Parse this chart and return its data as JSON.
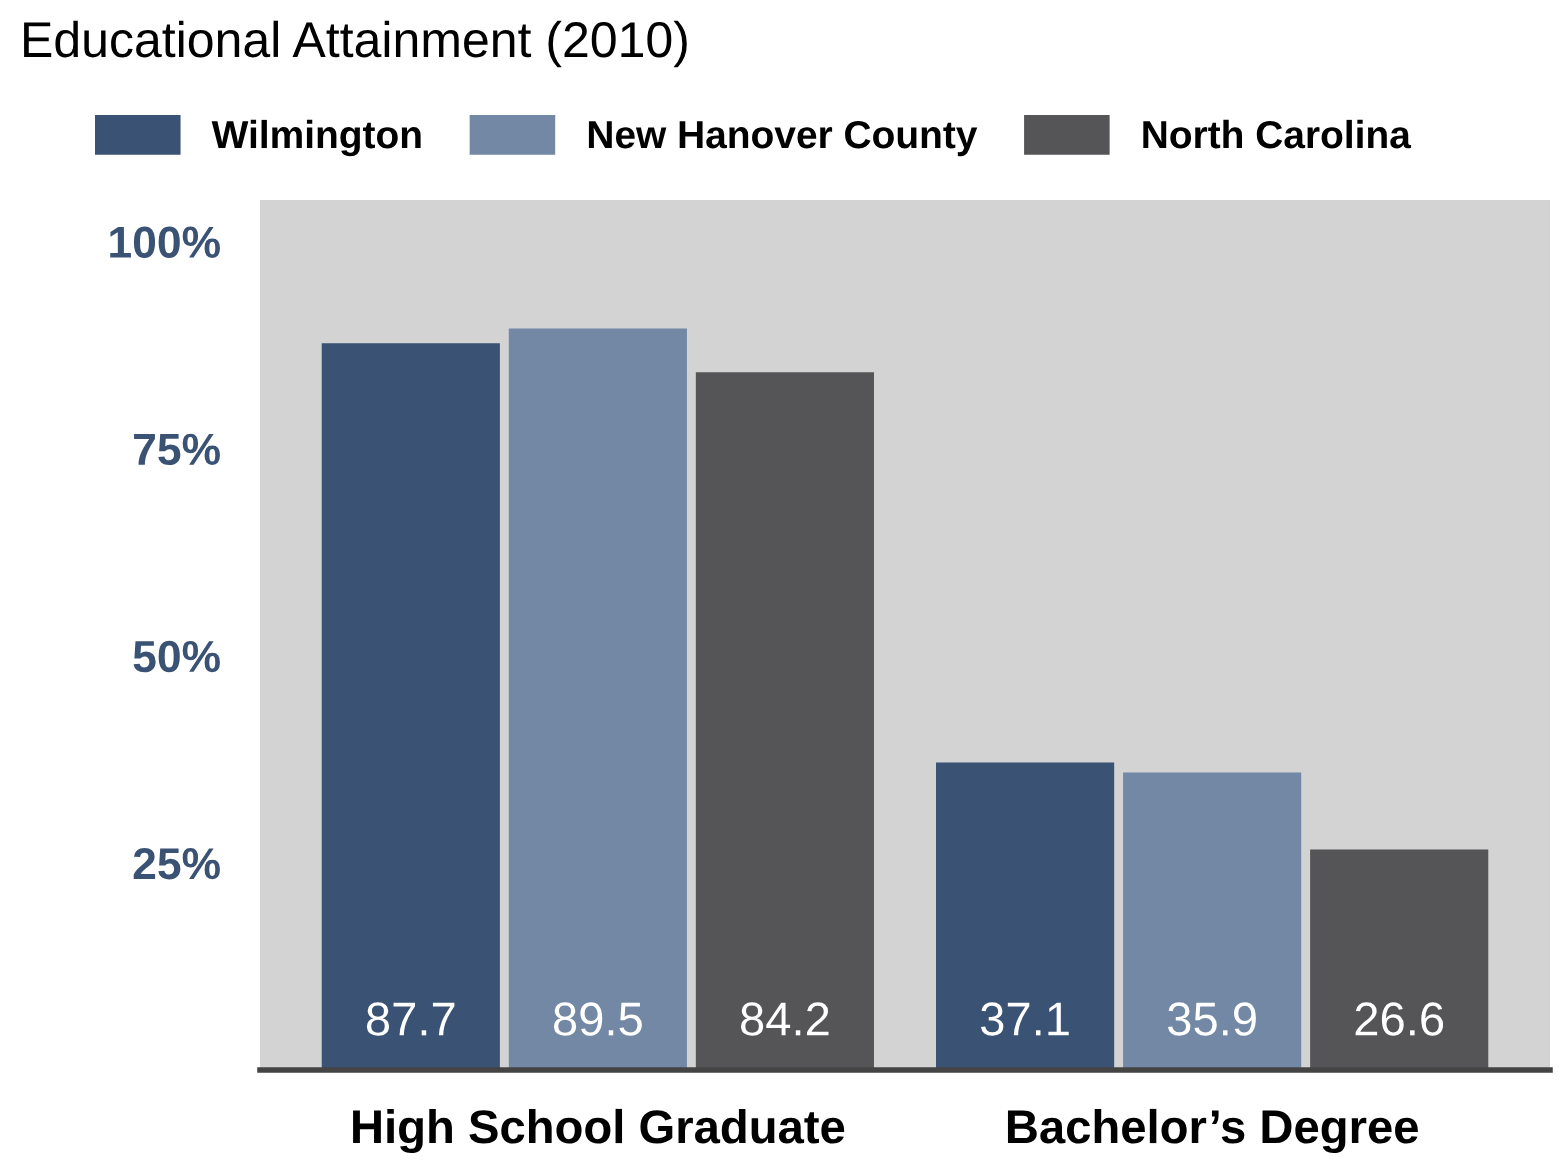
{
  "chart_data": {
    "type": "bar",
    "title": "Educational Attainment (2010)",
    "categories": [
      "High School Graduate",
      "Bachelor’s Degree"
    ],
    "series": [
      {
        "name": "Wilmington",
        "color": "#3a5273",
        "values": [
          87.7,
          37.1
        ]
      },
      {
        "name": "New Hanover County",
        "color": "#7388a5",
        "values": [
          89.5,
          35.9
        ]
      },
      {
        "name": "North Carolina",
        "color": "#555557",
        "values": [
          84.2,
          26.6
        ]
      }
    ],
    "ylim": [
      0,
      105
    ],
    "yticks": [
      {
        "value": 25,
        "label": "25%"
      },
      {
        "value": 50,
        "label": "50%"
      },
      {
        "value": 75,
        "label": "75%"
      },
      {
        "value": 100,
        "label": "100%"
      }
    ],
    "data_labels": true,
    "grid": false,
    "legend": "top left"
  }
}
